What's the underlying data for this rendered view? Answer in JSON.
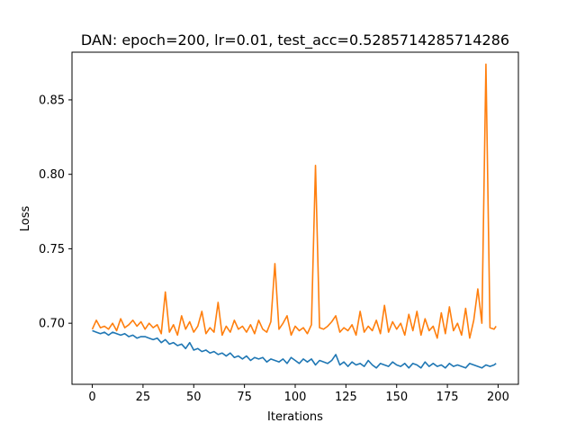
{
  "chart_data": {
    "type": "line",
    "title": "DAN: epoch=200, lr=0.01, test_acc=0.5285714285714286",
    "xlabel": "Iterations",
    "ylabel": "Loss",
    "xlim": [
      -10,
      210
    ],
    "ylim": [
      0.659,
      0.882
    ],
    "xticks": [
      0,
      25,
      50,
      75,
      100,
      125,
      150,
      175,
      200
    ],
    "xtick_labels": [
      "0",
      "25",
      "50",
      "75",
      "100",
      "125",
      "150",
      "175",
      "200"
    ],
    "yticks": [
      0.7,
      0.75,
      0.8,
      0.85
    ],
    "ytick_labels": [
      "0.70",
      "0.75",
      "0.80",
      "0.85"
    ],
    "grid": false,
    "legend": "none",
    "series": [
      {
        "color": "#1f77b4",
        "x": [
          0,
          2,
          4,
          6,
          8,
          10,
          12,
          14,
          16,
          18,
          20,
          22,
          24,
          26,
          28,
          30,
          32,
          34,
          36,
          38,
          40,
          42,
          44,
          46,
          48,
          50,
          52,
          54,
          56,
          58,
          60,
          62,
          64,
          66,
          68,
          70,
          72,
          74,
          76,
          78,
          80,
          82,
          84,
          86,
          88,
          90,
          92,
          94,
          96,
          98,
          100,
          102,
          104,
          106,
          108,
          110,
          112,
          114,
          116,
          118,
          120,
          122,
          124,
          126,
          128,
          130,
          132,
          134,
          136,
          138,
          140,
          142,
          144,
          146,
          148,
          150,
          152,
          154,
          156,
          158,
          160,
          162,
          164,
          166,
          168,
          170,
          172,
          174,
          176,
          178,
          180,
          182,
          184,
          186,
          188,
          190,
          192,
          194,
          196,
          198,
          199
        ],
        "y": [
          0.695,
          0.694,
          0.693,
          0.694,
          0.692,
          0.694,
          0.693,
          0.692,
          0.693,
          0.691,
          0.692,
          0.69,
          0.691,
          0.691,
          0.69,
          0.689,
          0.69,
          0.687,
          0.689,
          0.686,
          0.687,
          0.685,
          0.686,
          0.683,
          0.687,
          0.682,
          0.683,
          0.681,
          0.682,
          0.68,
          0.681,
          0.679,
          0.68,
          0.678,
          0.68,
          0.677,
          0.678,
          0.676,
          0.678,
          0.675,
          0.677,
          0.676,
          0.677,
          0.674,
          0.676,
          0.675,
          0.674,
          0.676,
          0.673,
          0.677,
          0.675,
          0.673,
          0.676,
          0.674,
          0.676,
          0.672,
          0.675,
          0.674,
          0.673,
          0.675,
          0.679,
          0.672,
          0.674,
          0.671,
          0.674,
          0.672,
          0.673,
          0.671,
          0.675,
          0.672,
          0.67,
          0.673,
          0.672,
          0.671,
          0.674,
          0.672,
          0.671,
          0.673,
          0.67,
          0.673,
          0.672,
          0.67,
          0.674,
          0.671,
          0.673,
          0.671,
          0.672,
          0.67,
          0.673,
          0.671,
          0.672,
          0.671,
          0.67,
          0.673,
          0.672,
          0.671,
          0.67,
          0.672,
          0.671,
          0.672,
          0.673
        ]
      },
      {
        "color": "#ff7f0e",
        "x": [
          0,
          2,
          4,
          6,
          8,
          10,
          12,
          14,
          16,
          18,
          20,
          22,
          24,
          26,
          28,
          30,
          32,
          34,
          36,
          38,
          40,
          42,
          44,
          46,
          48,
          50,
          52,
          54,
          56,
          58,
          60,
          62,
          64,
          66,
          68,
          70,
          72,
          74,
          76,
          78,
          80,
          82,
          84,
          86,
          88,
          90,
          92,
          94,
          96,
          98,
          100,
          102,
          104,
          106,
          108,
          110,
          112,
          114,
          116,
          118,
          120,
          122,
          124,
          126,
          128,
          130,
          132,
          134,
          136,
          138,
          140,
          142,
          144,
          146,
          148,
          150,
          152,
          154,
          156,
          158,
          160,
          162,
          164,
          166,
          168,
          170,
          172,
          174,
          176,
          178,
          180,
          182,
          184,
          186,
          188,
          190,
          192,
          194,
          196,
          198,
          199
        ],
        "y": [
          0.696,
          0.702,
          0.697,
          0.698,
          0.696,
          0.7,
          0.695,
          0.703,
          0.697,
          0.699,
          0.702,
          0.698,
          0.701,
          0.696,
          0.7,
          0.697,
          0.699,
          0.693,
          0.721,
          0.694,
          0.699,
          0.692,
          0.705,
          0.696,
          0.701,
          0.694,
          0.698,
          0.708,
          0.693,
          0.697,
          0.694,
          0.714,
          0.692,
          0.698,
          0.694,
          0.702,
          0.696,
          0.698,
          0.694,
          0.699,
          0.693,
          0.702,
          0.696,
          0.694,
          0.701,
          0.74,
          0.696,
          0.7,
          0.705,
          0.692,
          0.698,
          0.695,
          0.697,
          0.693,
          0.699,
          0.806,
          0.697,
          0.696,
          0.698,
          0.701,
          0.705,
          0.694,
          0.697,
          0.695,
          0.699,
          0.692,
          0.708,
          0.694,
          0.698,
          0.695,
          0.702,
          0.693,
          0.712,
          0.694,
          0.701,
          0.696,
          0.7,
          0.692,
          0.706,
          0.695,
          0.708,
          0.692,
          0.703,
          0.695,
          0.698,
          0.69,
          0.707,
          0.693,
          0.711,
          0.695,
          0.7,
          0.692,
          0.71,
          0.69,
          0.702,
          0.723,
          0.7,
          0.874,
          0.697,
          0.696,
          0.698
        ]
      }
    ]
  }
}
